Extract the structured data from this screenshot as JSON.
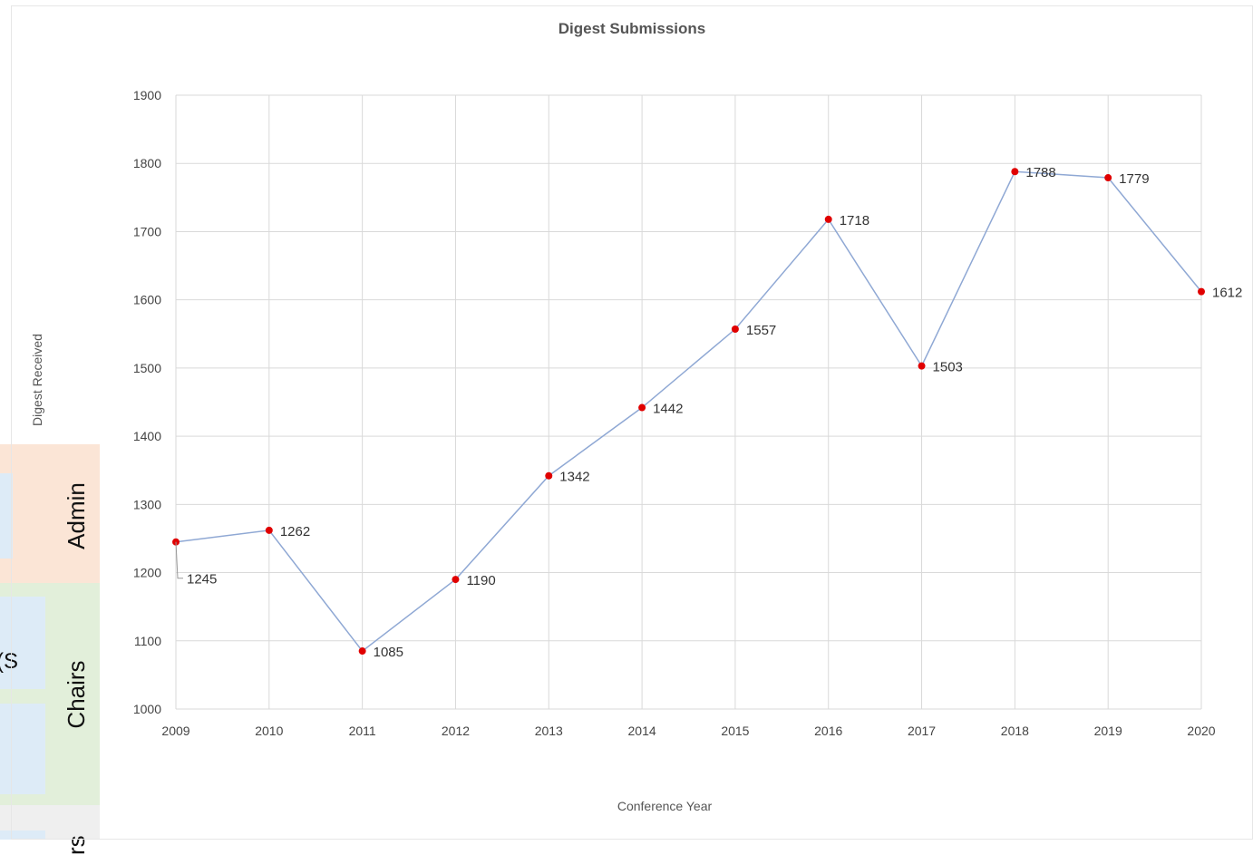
{
  "slide": {
    "section_labels": [
      "Admin",
      "Chairs",
      "rs"
    ],
    "fragment_text": "S)"
  },
  "colors": {
    "line": "#8fa8d4",
    "marker": "#e00000",
    "grid": "#d9d9d9",
    "admin_band": "#fbe5d6",
    "chairs_band": "#e2efda",
    "cell": "#ddebf7"
  },
  "chart_data": {
    "type": "line",
    "title": "Digest Submissions",
    "xlabel": "Conference Year",
    "ylabel": "Digest Received",
    "categories": [
      "2009",
      "2010",
      "2011",
      "2012",
      "2013",
      "2014",
      "2015",
      "2016",
      "2017",
      "2018",
      "2019",
      "2020"
    ],
    "series": [
      {
        "values": [
          1245,
          1262,
          1085,
          1190,
          1342,
          1442,
          1557,
          1718,
          1503,
          1788,
          1779,
          1612
        ]
      }
    ],
    "ylim": [
      1000,
      1900
    ],
    "yticks": [
      1000,
      1100,
      1200,
      1300,
      1400,
      1500,
      1600,
      1700,
      1800,
      1900
    ],
    "grid": true,
    "data_labels": true,
    "legend": "none"
  }
}
